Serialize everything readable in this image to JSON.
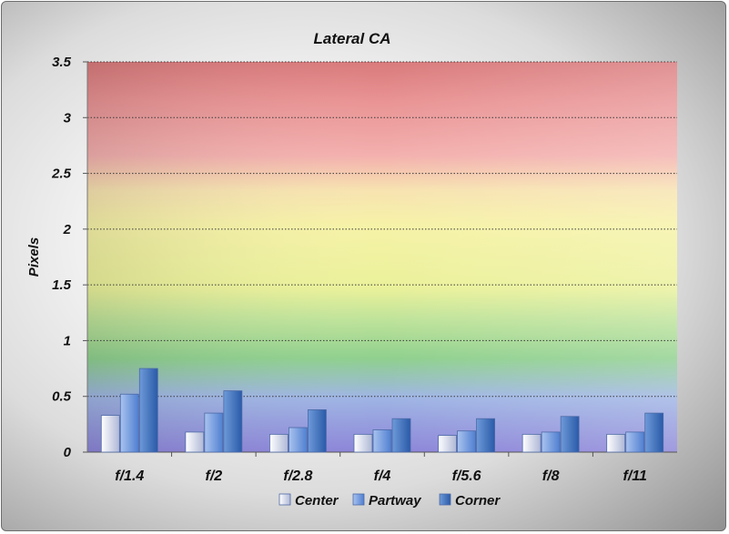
{
  "chart_data": {
    "type": "bar",
    "title": "Lateral CA",
    "xlabel": "",
    "ylabel": "Pixels",
    "ylim": [
      0,
      3.5
    ],
    "yticks": [
      "0",
      "0.5",
      "1",
      "1.5",
      "2",
      "2.5",
      "3",
      "3.5"
    ],
    "categories": [
      "f/1.4",
      "f/2",
      "f/2.8",
      "f/4",
      "f/5.6",
      "f/8",
      "f/11"
    ],
    "series": [
      {
        "name": "Center",
        "values": [
          0.33,
          0.18,
          0.16,
          0.16,
          0.15,
          0.16,
          0.16
        ],
        "color_light": "#ffffff",
        "color_dark": "#aeb7d6"
      },
      {
        "name": "Partway",
        "values": [
          0.52,
          0.35,
          0.22,
          0.2,
          0.19,
          0.18,
          0.18
        ],
        "color_light": "#a9c3ef",
        "color_dark": "#4f7fd0"
      },
      {
        "name": "Corner",
        "values": [
          0.75,
          0.55,
          0.38,
          0.3,
          0.3,
          0.32,
          0.35
        ],
        "color_light": "#6e9ad9",
        "color_dark": "#2a5aa8"
      }
    ],
    "grid": true,
    "legend_position": "bottom",
    "background_bands": [
      "red",
      "yellow",
      "green",
      "blue"
    ]
  }
}
